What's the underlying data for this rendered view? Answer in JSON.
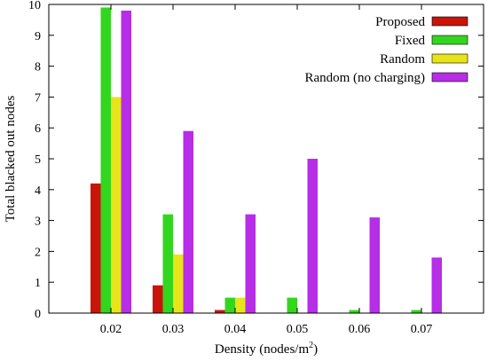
{
  "chart_data": {
    "type": "bar",
    "xlabel_main": "Density (nodes/m",
    "xlabel_sup": "2",
    "xlabel_tail": ")",
    "ylabel": "Total blacked out nodes",
    "ylim": [
      0,
      10
    ],
    "yticks": [
      "0",
      "1",
      "2",
      "3",
      "4",
      "5",
      "6",
      "7",
      "8",
      "9",
      "10"
    ],
    "categories": [
      "0.02",
      "0.03",
      "0.04",
      "0.05",
      "0.06",
      "0.07"
    ],
    "legend_position": "top-right",
    "grid": false,
    "series": [
      {
        "name": "Proposed",
        "color": "#c9140a",
        "values": [
          4.2,
          0.9,
          0.1,
          0.0,
          0.0,
          0.0
        ]
      },
      {
        "name": "Fixed",
        "color": "#33d61e",
        "values": [
          9.9,
          3.2,
          0.5,
          0.5,
          0.1,
          0.1
        ]
      },
      {
        "name": "Random",
        "color": "#e8e41a",
        "values": [
          7.0,
          1.9,
          0.5,
          0.0,
          0.0,
          0.0
        ]
      },
      {
        "name": "Random (no charging)",
        "color": "#b62ee6",
        "values": [
          9.8,
          5.9,
          3.2,
          5.0,
          3.1,
          1.8
        ]
      }
    ]
  }
}
